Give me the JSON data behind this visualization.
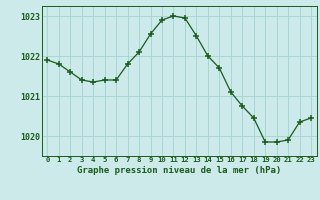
{
  "x": [
    0,
    1,
    2,
    3,
    4,
    5,
    6,
    7,
    8,
    9,
    10,
    11,
    12,
    13,
    14,
    15,
    16,
    17,
    18,
    19,
    20,
    21,
    22,
    23
  ],
  "y": [
    1021.9,
    1021.8,
    1021.6,
    1021.4,
    1021.35,
    1021.4,
    1021.4,
    1021.8,
    1022.1,
    1022.55,
    1022.9,
    1023.0,
    1022.95,
    1022.5,
    1022.0,
    1021.7,
    1021.1,
    1020.75,
    1020.45,
    1019.85,
    1019.85,
    1019.9,
    1020.35,
    1020.45
  ],
  "ylim": [
    1019.5,
    1023.25
  ],
  "yticks": [
    1020,
    1021,
    1022,
    1023
  ],
  "xticks": [
    0,
    1,
    2,
    3,
    4,
    5,
    6,
    7,
    8,
    9,
    10,
    11,
    12,
    13,
    14,
    15,
    16,
    17,
    18,
    19,
    20,
    21,
    22,
    23
  ],
  "line_color": "#1a5c1a",
  "marker_color": "#1a5c1a",
  "bg_color": "#cceaea",
  "grid_color": "#aad4d4",
  "xlabel": "Graphe pression niveau de la mer (hPa)",
  "tick_color": "#1a5c1a",
  "xlim": [
    -0.5,
    23.5
  ]
}
